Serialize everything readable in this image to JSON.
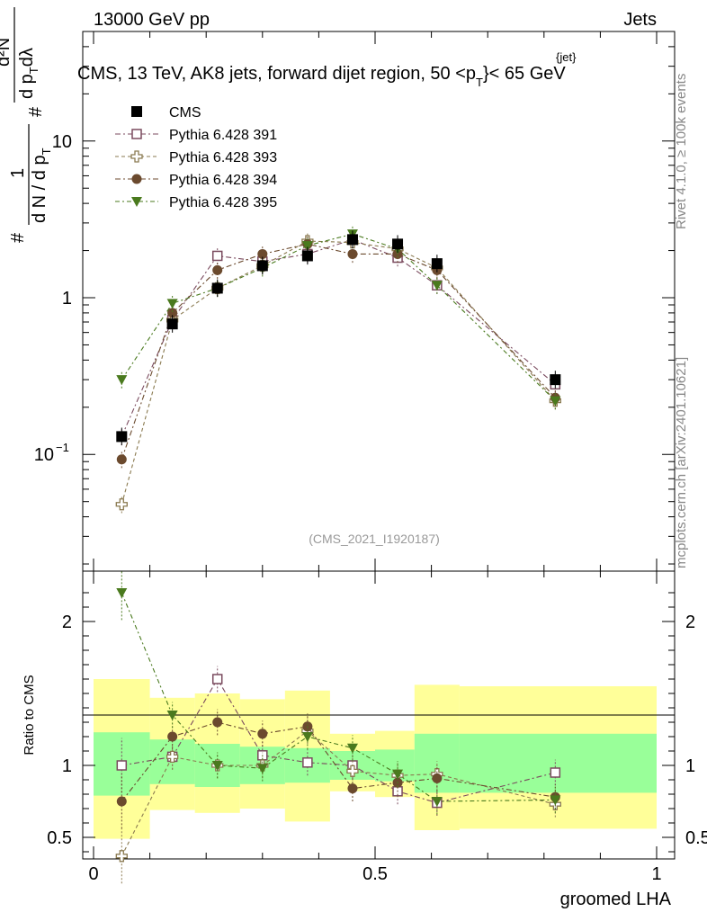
{
  "header": {
    "left": "13000 GeV pp",
    "right": "Jets"
  },
  "side_text": {
    "rivet": "Rivet 4.1.0, ≥ 100k events",
    "mcplots": "mcplots.cern.ch [arXiv:2401.10621]"
  },
  "chart_data": {
    "type": "scatter",
    "title": "CMS, 13 TeV, AK8 jets, forward dijet region, 50 <p",
    "title_sup": "{jet}",
    "title_sub": "T",
    "title_end": "}< 65 GeV",
    "watermark": "(CMS_2021_I1920187)",
    "xlabel": "groomed LHA",
    "ylabel_main": {
      "num_hash": "#",
      "num_one": "1",
      "den": "d N / d p",
      "den_sub": "T",
      "right_hash": "#",
      "right_num": "d²N",
      "right_den": "d p",
      "right_den_sub": "T",
      "right_den_end": "dλ"
    },
    "ylabel_ratio": "Ratio to CMS",
    "xlim": [
      0,
      1
    ],
    "ylim_main": [
      0.018,
      50
    ],
    "yscale_main": "log",
    "ylim_ratio": [
      0.35,
      2.35
    ],
    "x_ticks": [
      "0",
      "0.5",
      "1"
    ],
    "y_ticks_main": [
      "10",
      "1",
      "10"
    ],
    "y_ticks_main_exp": [
      "",
      "",
      "−1"
    ],
    "y_ticks_ratio": [
      "0.5",
      "1",
      "2"
    ],
    "x": [
      0.05,
      0.14,
      0.22,
      0.3,
      0.38,
      0.46,
      0.54,
      0.61,
      0.82
    ],
    "bin_edges": [
      0,
      0.1,
      0.18,
      0.26,
      0.34,
      0.42,
      0.5,
      0.57,
      0.65,
      1.0
    ],
    "legend": [
      {
        "name": "CMS",
        "color": "#000000",
        "marker": "filled-square"
      },
      {
        "name": "Pythia 6.428 391",
        "color": "#7a4a5e",
        "marker": "open-square"
      },
      {
        "name": "Pythia 6.428 393",
        "color": "#8a7a50",
        "marker": "open-plus"
      },
      {
        "name": "Pythia 6.428 394",
        "color": "#6b4a2e",
        "marker": "filled-circle"
      },
      {
        "name": "Pythia 6.428 395",
        "color": "#4a7a1e",
        "marker": "filled-triangle-down"
      }
    ],
    "series": [
      {
        "name": "CMS",
        "values": [
          0.13,
          0.68,
          1.15,
          1.6,
          1.85,
          2.35,
          2.2,
          1.65,
          0.3
        ]
      },
      {
        "name": "Pythia 6.428 391",
        "values": [
          0.13,
          0.72,
          1.85,
          1.7,
          1.9,
          2.35,
          1.8,
          1.2,
          0.28
        ]
      },
      {
        "name": "Pythia 6.428 393",
        "values": [
          0.048,
          0.72,
          1.15,
          1.6,
          2.3,
          2.25,
          2.05,
          1.55,
          0.22
        ]
      },
      {
        "name": "Pythia 6.428 394",
        "values": [
          0.093,
          0.8,
          1.5,
          1.9,
          2.2,
          1.9,
          1.9,
          1.5,
          0.23
        ]
      },
      {
        "name": "Pythia 6.428 395",
        "values": [
          0.3,
          0.92,
          1.15,
          1.55,
          2.15,
          2.55,
          2.05,
          1.2,
          0.22
        ]
      }
    ],
    "ratio_series": [
      {
        "name": "Pythia 6.428 391",
        "values": [
          1.0,
          1.06,
          1.6,
          1.07,
          1.02,
          1.0,
          0.82,
          0.74,
          0.95
        ]
      },
      {
        "name": "Pythia 6.428 393",
        "values": [
          0.37,
          1.06,
          1.0,
          1.0,
          1.24,
          0.96,
          0.93,
          0.94,
          0.73
        ]
      },
      {
        "name": "Pythia 6.428 394",
        "values": [
          0.75,
          1.2,
          1.3,
          1.22,
          1.27,
          0.84,
          0.88,
          0.91,
          0.78
        ]
      },
      {
        "name": "Pythia 6.428 395",
        "values": [
          2.2,
          1.35,
          1.0,
          0.98,
          1.2,
          1.12,
          0.94,
          0.75,
          0.76
        ]
      }
    ],
    "band_inner": [
      {
        "lo": 0.79,
        "hi": 1.23
      },
      {
        "lo": 0.87,
        "hi": 1.18
      },
      {
        "lo": 0.85,
        "hi": 1.15
      },
      {
        "lo": 0.87,
        "hi": 1.13
      },
      {
        "lo": 0.88,
        "hi": 1.12
      },
      {
        "lo": 0.9,
        "hi": 1.1
      },
      {
        "lo": 0.89,
        "hi": 1.11
      },
      {
        "lo": 0.81,
        "hi": 1.22
      },
      {
        "lo": 0.81,
        "hi": 1.22
      }
    ],
    "band_outer": [
      {
        "lo": 0.49,
        "hi": 1.6
      },
      {
        "lo": 0.69,
        "hi": 1.47
      },
      {
        "lo": 0.67,
        "hi": 1.5
      },
      {
        "lo": 0.7,
        "hi": 1.46
      },
      {
        "lo": 0.61,
        "hi": 1.52
      },
      {
        "lo": 0.82,
        "hi": 1.22
      },
      {
        "lo": 0.78,
        "hi": 1.24
      },
      {
        "lo": 0.55,
        "hi": 1.56
      },
      {
        "lo": 0.56,
        "hi": 1.55
      }
    ]
  }
}
